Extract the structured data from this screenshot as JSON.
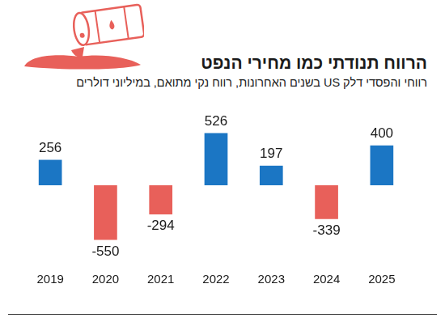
{
  "chart_data": {
    "type": "bar",
    "title": "הרווח תנודתי כמו מחירי הנפט",
    "subtitle": "רווחי והפסדי דלק US בשנים האחרונות, רווח נקי מתואם, במיליוני דולרים",
    "categories": [
      "2019",
      "2020",
      "2021",
      "2022",
      "2023",
      "2024",
      "2025"
    ],
    "values": [
      256,
      -550,
      -294,
      526,
      197,
      -339,
      400
    ],
    "colors": [
      "#1b76c4",
      "#e8605a",
      "#e8605a",
      "#1b76c4",
      "#1b76c4",
      "#e8605a",
      "#1b76c4"
    ],
    "ylim": [
      -700,
      700
    ],
    "grid": false,
    "data_labels": true,
    "tick_labels": "x"
  }
}
